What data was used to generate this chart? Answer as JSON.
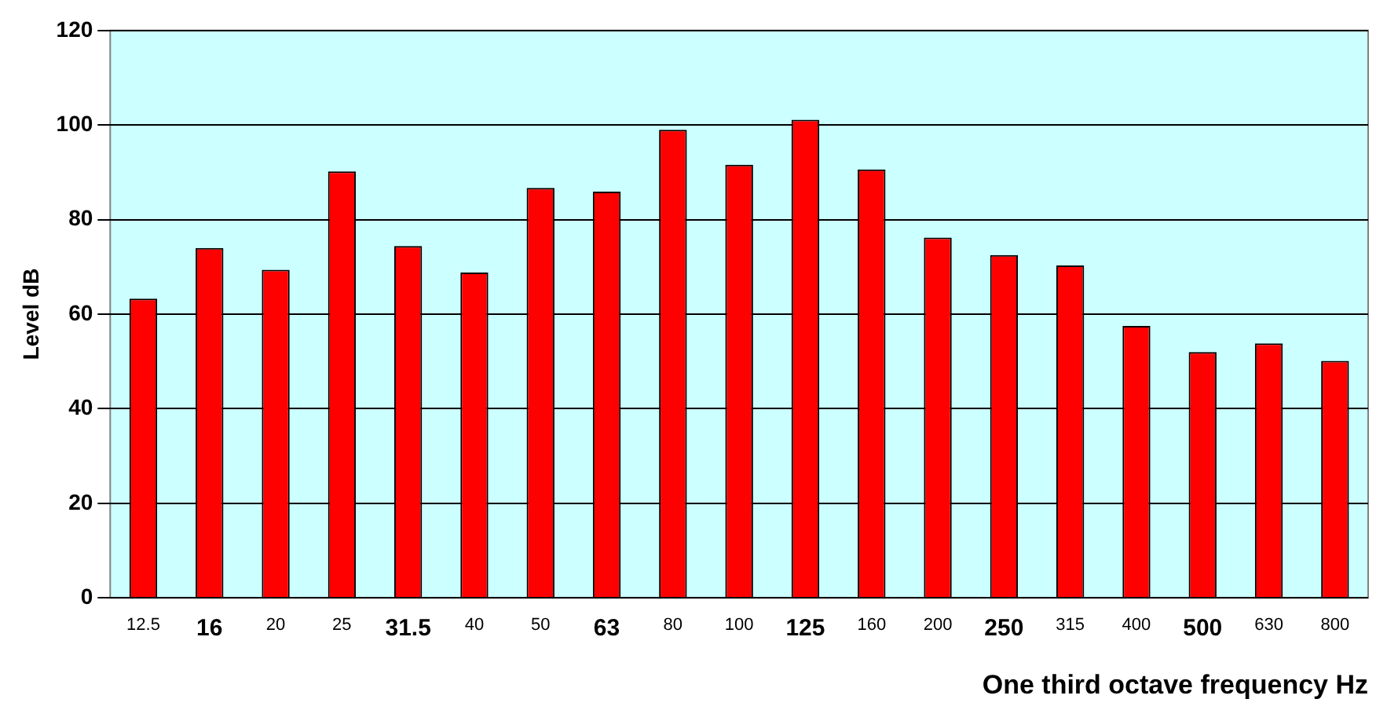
{
  "chart_data": {
    "type": "bar",
    "xlabel": "One third octave frequency Hz",
    "ylabel": "Level dB",
    "categories": [
      "12.5",
      "16",
      "20",
      "25",
      "31.5",
      "40",
      "50",
      "63",
      "80",
      "100",
      "125",
      "160",
      "200",
      "250",
      "315",
      "400",
      "500",
      "630",
      "800"
    ],
    "values": [
      63.3,
      74,
      69.4,
      90.2,
      74.4,
      68.8,
      86.7,
      85.9,
      99,
      91.6,
      101.1,
      90.6,
      76.2,
      72.5,
      70.3,
      57.5,
      52,
      53.8,
      50.1
    ],
    "color": "#ff0000",
    "ylim": [
      0,
      120
    ],
    "yticks": [
      0,
      20,
      40,
      60,
      80,
      100,
      120
    ],
    "grid": "y",
    "legend": false
  }
}
